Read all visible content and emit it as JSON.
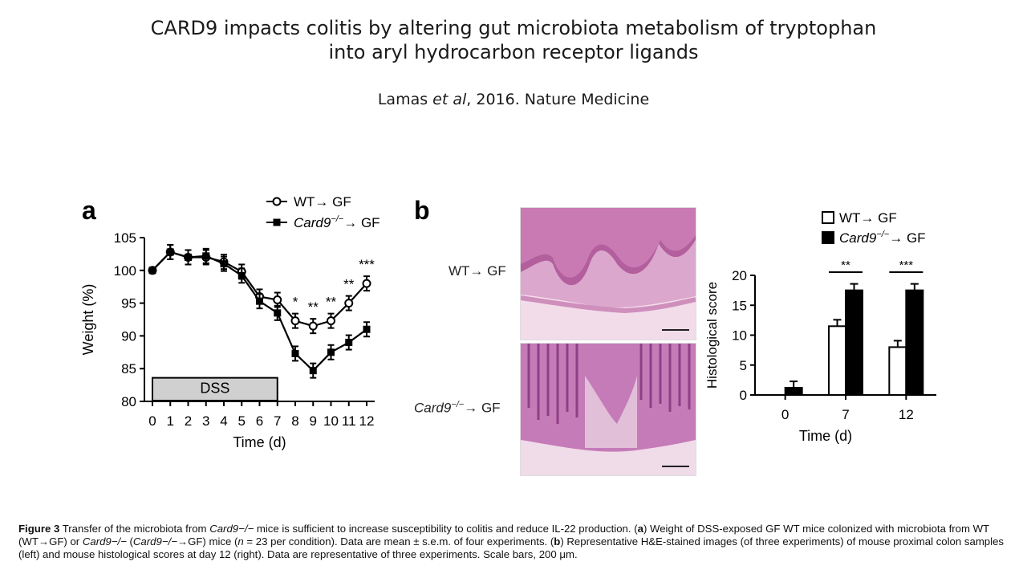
{
  "slide": {
    "title_line1": "CARD9 impacts colitis by altering gut microbiota metabolism of tryptophan",
    "title_line2": "into aryl hydrocarbon receptor ligands",
    "citation_authors": "Lamas ",
    "citation_etal": "et al",
    "citation_rest": ", 2016. Nature Medicine"
  },
  "figure": {
    "panel_a_letter": "a",
    "panel_b_letter": "b",
    "histology_label_wt": "WT→ GF",
    "histology_label_ko_gene": "Card9",
    "histology_label_ko_sup": "−/−",
    "histology_label_ko_tail": "→ GF"
  },
  "caption": {
    "bold_prefix": "Figure 3",
    "t1": " Transfer of the microbiota from ",
    "i1": "Card9−/−",
    "t2": " mice is sufficient to increase susceptibility to colitis and reduce IL-22 production. (",
    "b1": "a",
    "t3": ") Weight of DSS-exposed GF WT mice colonized with microbiota from WT (WT→GF) or ",
    "i2": "Card9−/−",
    "t4": " (",
    "i3": "Card9−/−",
    "t5": "→GF) mice (",
    "i4": "n",
    "t6": " = 23 per condition). Data are mean ± s.e.m. of four experiments. (",
    "b2": "b",
    "t7": ") Representative H&E-stained images (of three experiments) of mouse proximal colon samples (left) and mouse histological scores at day 12 (right). Data are representative of three experiments. Scale bars, 200 μm."
  },
  "chart_data": [
    {
      "type": "line",
      "panel": "a",
      "xlabel": "Time (d)",
      "ylabel": "Weight (%)",
      "x": [
        0,
        1,
        2,
        3,
        4,
        5,
        6,
        7,
        8,
        9,
        10,
        11,
        12
      ],
      "ylim": [
        80,
        105
      ],
      "yticks": [
        80,
        85,
        90,
        95,
        100,
        105
      ],
      "series": [
        {
          "name": "WT→ GF",
          "marker": "open-circle",
          "values": [
            100,
            102.8,
            102,
            102,
            101.3,
            99.8,
            96,
            95.5,
            92.3,
            91.5,
            92.3,
            95,
            98
          ]
        },
        {
          "name": "Card9−/−→ GF",
          "marker": "filled-square",
          "values": [
            100,
            102.8,
            102,
            102.2,
            101,
            99.2,
            95.3,
            93.5,
            87.3,
            84.7,
            87.5,
            89,
            91
          ]
        }
      ],
      "significance": [
        {
          "x": 8,
          "label": "*"
        },
        {
          "x": 9,
          "label": "**"
        },
        {
          "x": 10,
          "label": "**"
        },
        {
          "x": 11,
          "label": "**"
        },
        {
          "x": 12,
          "label": "***"
        }
      ],
      "annotation": {
        "label": "DSS",
        "x_start": 0,
        "x_end": 7
      },
      "legend_position": "top-right",
      "grid": false
    },
    {
      "type": "bar",
      "panel": "b",
      "xlabel": "Time (d)",
      "ylabel": "Histological score",
      "categories": [
        "0",
        "7",
        "12"
      ],
      "ylim": [
        0,
        20
      ],
      "yticks": [
        0,
        5,
        10,
        15,
        20
      ],
      "series": [
        {
          "name": "WT→ GF",
          "fill": "#ffffff",
          "values": [
            0,
            11.5,
            8
          ]
        },
        {
          "name": "Card9−/−→ GF",
          "fill": "#000000",
          "values": [
            1.2,
            17.5,
            17.5
          ]
        }
      ],
      "significance": [
        {
          "category": "7",
          "label": "**"
        },
        {
          "category": "12",
          "label": "***"
        }
      ],
      "legend_position": "top",
      "grid": false
    }
  ]
}
